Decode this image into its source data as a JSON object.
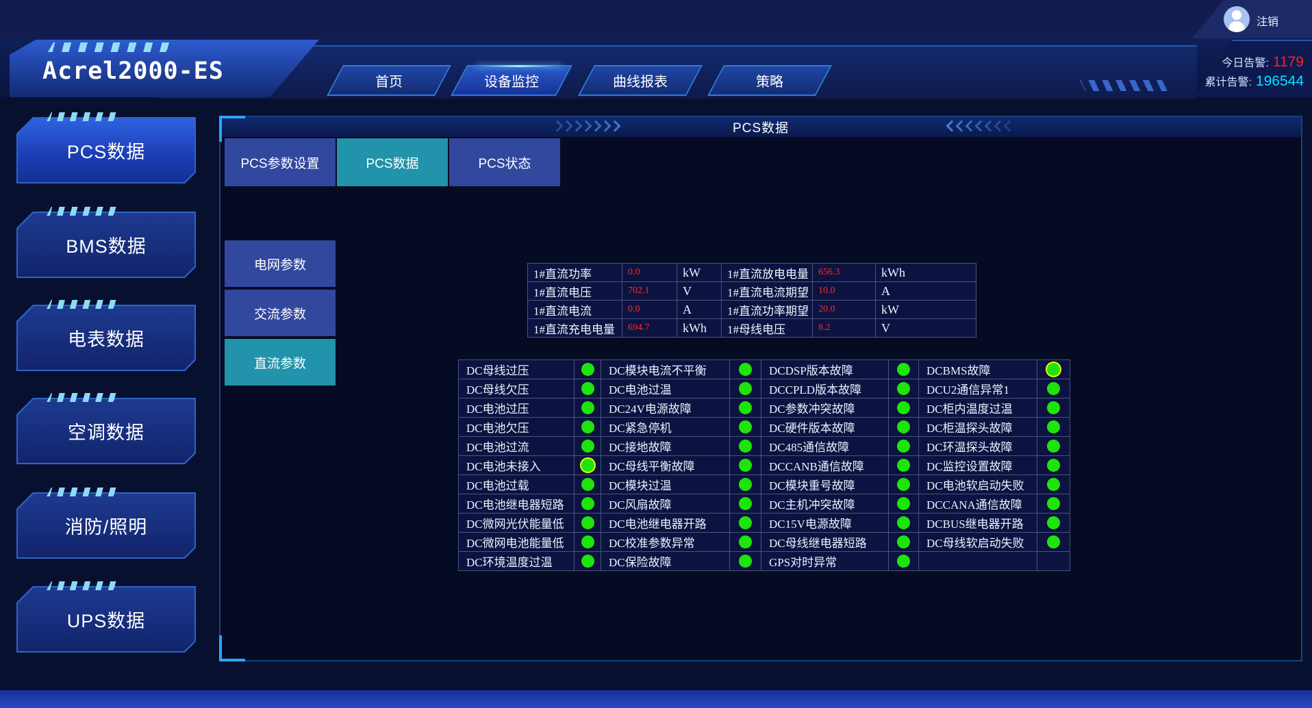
{
  "topbar": {
    "logout_label": "注销"
  },
  "header": {
    "logo": "Acrel2000-ES",
    "nav_tabs": [
      {
        "label": "首页",
        "active": false
      },
      {
        "label": "设备监控",
        "active": true
      },
      {
        "label": "曲线报表",
        "active": false
      },
      {
        "label": "策略",
        "active": false
      }
    ],
    "alarms": {
      "today_label": "今日告警:",
      "today_value": "1179",
      "today_color": "#ff1f1f",
      "total_label": "累计告警:",
      "total_value": "196544",
      "total_color": "#00e4ff"
    }
  },
  "sidebar": {
    "items": [
      {
        "label": "PCS数据",
        "active": true
      },
      {
        "label": "BMS数据",
        "active": false
      },
      {
        "label": "电表数据",
        "active": false
      },
      {
        "label": "空调数据",
        "active": false
      },
      {
        "label": "消防/照明",
        "active": false
      },
      {
        "label": "UPS数据",
        "active": false
      }
    ]
  },
  "panel": {
    "title": "PCS数据",
    "tabs": [
      {
        "label": "PCS参数设置",
        "active": false
      },
      {
        "label": "PCS数据",
        "active": true
      },
      {
        "label": "PCS状态",
        "active": false
      }
    ],
    "param_buttons": [
      {
        "label": "电网参数",
        "active": false
      },
      {
        "label": "交流参数",
        "active": false
      },
      {
        "label": "直流参数",
        "active": true
      }
    ],
    "dc_table": {
      "value_color": "#ff2a2a",
      "rows": [
        {
          "label1": "1#直流功率",
          "value1": "0.0",
          "unit1": "kW",
          "label2": "1#直流放电电量",
          "value2": "656.3",
          "unit2": "kWh"
        },
        {
          "label1": "1#直流电压",
          "value1": "702.1",
          "unit1": "V",
          "label2": "1#直流电流期望",
          "value2": "10.0",
          "unit2": "A"
        },
        {
          "label1": "1#直流电流",
          "value1": "0.0",
          "unit1": "A",
          "label2": "1#直流功率期望",
          "value2": "20.0",
          "unit2": "kW"
        },
        {
          "label1": "1#直流充电电量",
          "value1": "694.7",
          "unit1": "kWh",
          "label2": "1#母线电压",
          "value2": "8.2",
          "unit2": "V"
        }
      ]
    },
    "status_table": {
      "indicator_ok_color": "#1fe40b",
      "indicator_ring_color": "#eaff00",
      "rows": [
        [
          {
            "label": "DC母线过压",
            "state": "ok"
          },
          {
            "label": "DC模块电流不平衡",
            "state": "ok"
          },
          {
            "label": "DCDSP版本故障",
            "state": "ok"
          },
          {
            "label": "DCBMS故障",
            "state": "ok-ring"
          }
        ],
        [
          {
            "label": "DC母线欠压",
            "state": "ok"
          },
          {
            "label": "DC电池过温",
            "state": "ok"
          },
          {
            "label": "DCCPLD版本故障",
            "state": "ok"
          },
          {
            "label": "DCU2通信异常1",
            "state": "ok"
          }
        ],
        [
          {
            "label": "DC电池过压",
            "state": "ok"
          },
          {
            "label": "DC24V电源故障",
            "state": "ok"
          },
          {
            "label": "DC参数冲突故障",
            "state": "ok"
          },
          {
            "label": "DC柜内温度过温",
            "state": "ok"
          }
        ],
        [
          {
            "label": "DC电池欠压",
            "state": "ok"
          },
          {
            "label": "DC紧急停机",
            "state": "ok"
          },
          {
            "label": "DC硬件版本故障",
            "state": "ok"
          },
          {
            "label": "DC柜温探头故障",
            "state": "ok"
          }
        ],
        [
          {
            "label": "DC电池过流",
            "state": "ok"
          },
          {
            "label": "DC接地故障",
            "state": "ok"
          },
          {
            "label": "DC485通信故障",
            "state": "ok"
          },
          {
            "label": "DC环温探头故障",
            "state": "ok"
          }
        ],
        [
          {
            "label": "DC电池未接入",
            "state": "ok-ring"
          },
          {
            "label": "DC母线平衡故障",
            "state": "ok"
          },
          {
            "label": "DCCANB通信故障",
            "state": "ok"
          },
          {
            "label": "DC监控设置故障",
            "state": "ok"
          }
        ],
        [
          {
            "label": "DC电池过载",
            "state": "ok"
          },
          {
            "label": "DC模块过温",
            "state": "ok"
          },
          {
            "label": "DC模块重号故障",
            "state": "ok"
          },
          {
            "label": "DC电池软启动失败",
            "state": "ok"
          }
        ],
        [
          {
            "label": "DC电池继电器短路",
            "state": "ok"
          },
          {
            "label": "DC风扇故障",
            "state": "ok"
          },
          {
            "label": "DC主机冲突故障",
            "state": "ok"
          },
          {
            "label": "DCCANA通信故障",
            "state": "ok"
          }
        ],
        [
          {
            "label": "DC微网光伏能量低",
            "state": "ok"
          },
          {
            "label": "DC电池继电器开路",
            "state": "ok"
          },
          {
            "label": "DC15V电源故障",
            "state": "ok"
          },
          {
            "label": "DCBUS继电器开路",
            "state": "ok"
          }
        ],
        [
          {
            "label": "DC微网电池能量低",
            "state": "ok"
          },
          {
            "label": "DC校准参数异常",
            "state": "ok"
          },
          {
            "label": "DC母线继电器短路",
            "state": "ok"
          },
          {
            "label": "DC母线软启动失败",
            "state": "ok"
          }
        ],
        [
          {
            "label": "DC环境温度过温",
            "state": "ok"
          },
          {
            "label": "DC保险故障",
            "state": "ok"
          },
          {
            "label": "GPS对时异常",
            "state": "ok"
          },
          null
        ]
      ]
    }
  }
}
